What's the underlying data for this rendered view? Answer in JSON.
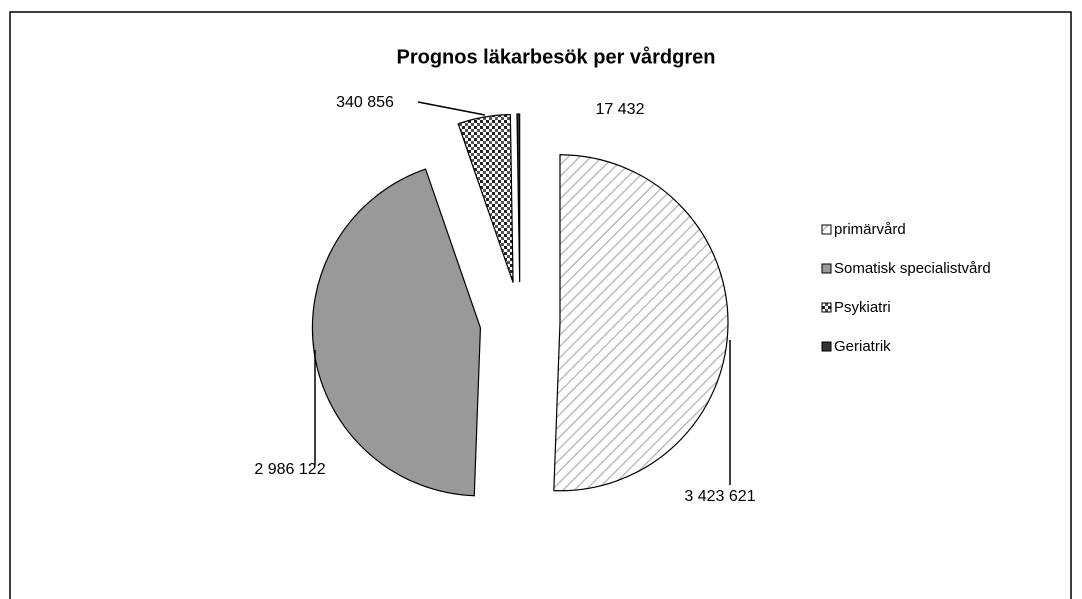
{
  "chart_data": {
    "type": "pie",
    "title": "Prognos läkarbesök per vårdgren",
    "categories": [
      "primärvård",
      "Somatisk specialistvård",
      "Psykiatri",
      "Geriatrik"
    ],
    "values": [
      3423621,
      2986122,
      340856,
      17432
    ],
    "value_labels": [
      "3 423 621",
      "2 986 122",
      "340 856",
      "17 432"
    ],
    "colors": [
      "#ffffff",
      "#999999",
      "#ffffff",
      "#333333"
    ],
    "patterns": [
      "hatch",
      "solid",
      "dots",
      "solid"
    ]
  }
}
